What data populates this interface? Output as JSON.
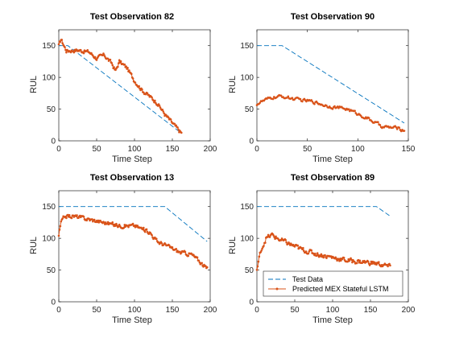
{
  "colors": {
    "test": "#0072BD",
    "pred": "#D95319",
    "axis": "#262626"
  },
  "chart_data": [
    {
      "type": "line",
      "title": "Test Observation 82",
      "xlabel": "Time Step",
      "ylabel": "RUL",
      "xlim": [
        0,
        200
      ],
      "ylim": [
        0,
        175
      ],
      "xticks": [
        0,
        50,
        100,
        150,
        200
      ],
      "yticks": [
        0,
        50,
        100,
        150
      ],
      "grid": false,
      "n": 162,
      "series": [
        {
          "name": "Test Data",
          "style": "dashed",
          "key_x": [
            0,
            12,
            162
          ],
          "key_y": [
            150,
            150,
            12
          ]
        },
        {
          "name": "Predicted MEX Stateful LSTM",
          "style": "solid-dots",
          "key_x": [
            0,
            3,
            10,
            25,
            40,
            50,
            60,
            70,
            75,
            80,
            90,
            100,
            110,
            120,
            130,
            140,
            150,
            162
          ],
          "key_y": [
            150,
            160,
            142,
            143,
            140,
            130,
            135,
            122,
            110,
            125,
            115,
            95,
            80,
            70,
            60,
            42,
            28,
            12
          ],
          "noise": 5
        }
      ]
    },
    {
      "type": "line",
      "title": "Test Observation 90",
      "xlabel": "Time Step",
      "ylabel": "RUL",
      "xlim": [
        0,
        150
      ],
      "ylim": [
        0,
        175
      ],
      "xticks": [
        0,
        50,
        100,
        150
      ],
      "yticks": [
        0,
        50,
        100,
        150
      ],
      "grid": false,
      "n": 146,
      "series": [
        {
          "name": "Test Data",
          "style": "dashed",
          "key_x": [
            0,
            25,
            146
          ],
          "key_y": [
            150,
            150,
            28
          ]
        },
        {
          "name": "Predicted MEX Stateful LSTM",
          "style": "solid-dots",
          "key_x": [
            0,
            5,
            15,
            25,
            40,
            55,
            70,
            90,
            110,
            125,
            140,
            146
          ],
          "key_y": [
            58,
            62,
            68,
            70,
            65,
            62,
            55,
            50,
            35,
            22,
            20,
            16
          ],
          "noise": 4
        }
      ]
    },
    {
      "type": "line",
      "title": "Test Observation 13",
      "xlabel": "Time Step",
      "ylabel": "RUL",
      "xlim": [
        0,
        200
      ],
      "ylim": [
        0,
        175
      ],
      "xticks": [
        0,
        50,
        100,
        150,
        200
      ],
      "yticks": [
        0,
        50,
        100,
        150
      ],
      "grid": false,
      "n": 196,
      "series": [
        {
          "name": "Test Data",
          "style": "dashed",
          "key_x": [
            0,
            140,
            196
          ],
          "key_y": [
            150,
            150,
            95
          ]
        },
        {
          "name": "Predicted MEX Stateful LSTM",
          "style": "solid-dots",
          "key_x": [
            0,
            3,
            8,
            20,
            40,
            60,
            80,
            100,
            120,
            130,
            140,
            160,
            175,
            185,
            196
          ],
          "key_y": [
            105,
            125,
            135,
            135,
            130,
            125,
            120,
            120,
            110,
            95,
            90,
            78,
            75,
            65,
            52
          ],
          "noise": 5
        }
      ]
    },
    {
      "type": "line",
      "title": "Test Observation 89",
      "xlabel": "Time Step",
      "ylabel": "RUL",
      "xlim": [
        0,
        200
      ],
      "ylim": [
        0,
        175
      ],
      "xticks": [
        0,
        50,
        100,
        150,
        200
      ],
      "yticks": [
        0,
        50,
        100,
        150
      ],
      "grid": false,
      "n": 176,
      "legend": "bottom-right",
      "series": [
        {
          "name": "Test Data",
          "style": "dashed",
          "key_x": [
            0,
            158,
            176
          ],
          "key_y": [
            150,
            150,
            135
          ]
        },
        {
          "name": "Predicted MEX Stateful LSTM",
          "style": "solid-dots",
          "key_x": [
            0,
            5,
            12,
            20,
            30,
            45,
            60,
            80,
            100,
            120,
            140,
            160,
            176
          ],
          "key_y": [
            50,
            80,
            100,
            105,
            98,
            90,
            82,
            75,
            70,
            65,
            63,
            60,
            55
          ],
          "noise": 6
        }
      ]
    }
  ]
}
